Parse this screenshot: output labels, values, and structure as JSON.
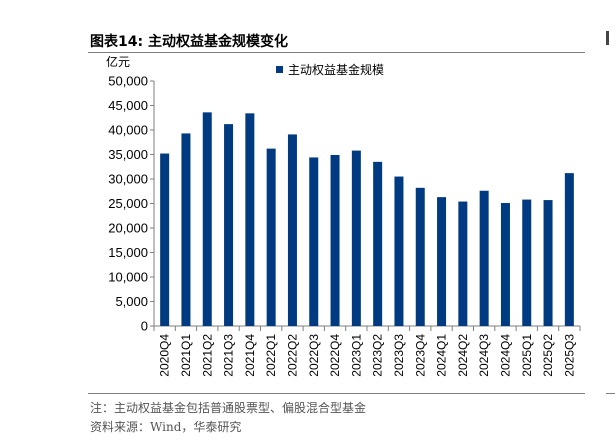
{
  "figure": {
    "label": "图表14:",
    "title": "主动权益基金规模变化"
  },
  "notes": {
    "note": "注：主动权益基金包括普通股票型、偏股混合型基金",
    "source": "资料来源：Wind，华泰研究"
  },
  "colors": {
    "bar": "#003a80",
    "axis": "#7f7f7f"
  },
  "chart_data": {
    "type": "bar",
    "title": "",
    "xlabel": "",
    "ylabel": "",
    "unit_label": "亿元",
    "ylim": [
      0,
      50000
    ],
    "yticks": [
      0,
      5000,
      10000,
      15000,
      20000,
      25000,
      30000,
      35000,
      40000,
      45000,
      50000
    ],
    "ytick_labels": [
      "0",
      "5,000",
      "10,000",
      "15,000",
      "20,000",
      "25,000",
      "30,000",
      "35,000",
      "40,000",
      "45,000",
      "50,000"
    ],
    "grid": false,
    "legend_position": "top-center",
    "categories": [
      "2020Q4",
      "2021Q1",
      "2021Q2",
      "2021Q3",
      "2021Q4",
      "2022Q1",
      "2022Q2",
      "2022Q3",
      "2022Q4",
      "2023Q1",
      "2023Q2",
      "2023Q3",
      "2023Q4",
      "2024Q1",
      "2024Q2",
      "2024Q3",
      "2024Q4",
      "2025Q1",
      "2025Q2",
      "2025Q3"
    ],
    "series": [
      {
        "name": "主动权益基金规模",
        "values": [
          35200,
          39300,
          43600,
          41200,
          43400,
          36200,
          39100,
          34400,
          34900,
          35800,
          33500,
          30500,
          28200,
          26300,
          25400,
          27600,
          25100,
          25800,
          25700,
          31200
        ]
      }
    ]
  }
}
